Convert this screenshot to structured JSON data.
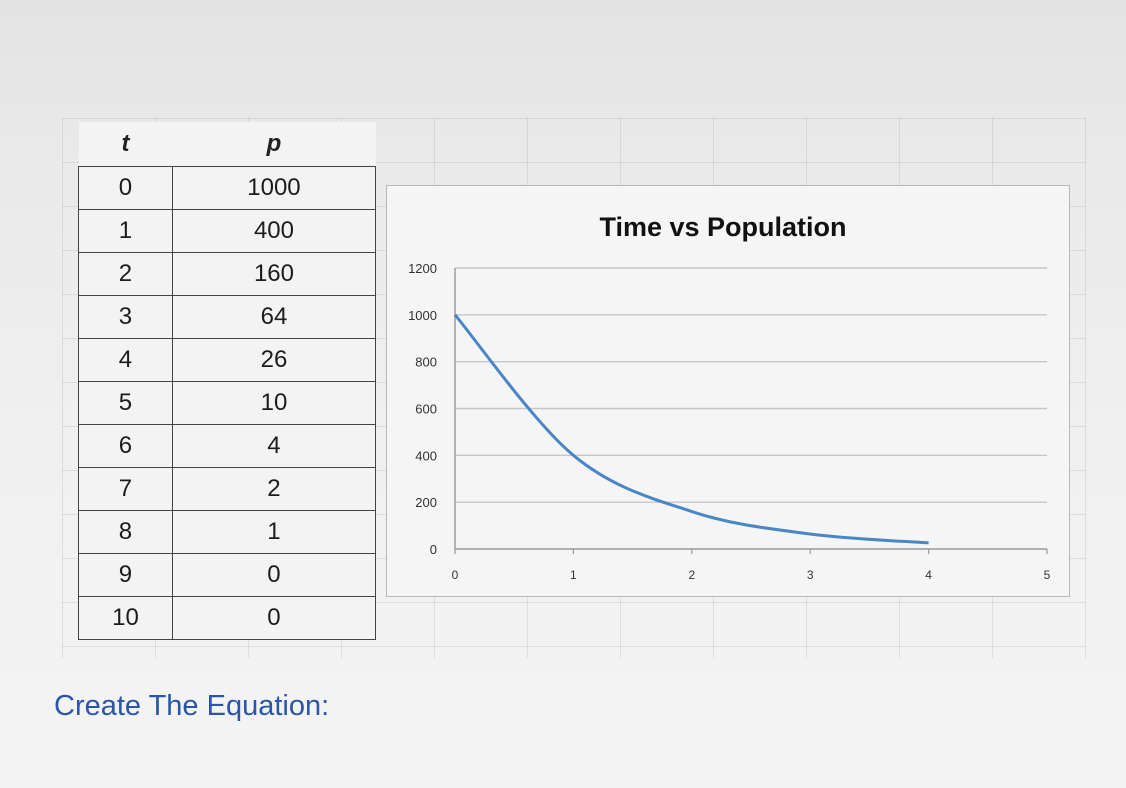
{
  "table": {
    "headers": [
      "t",
      "p"
    ],
    "rows": [
      [
        "0",
        "1000"
      ],
      [
        "1",
        "400"
      ],
      [
        "2",
        "160"
      ],
      [
        "3",
        "64"
      ],
      [
        "4",
        "26"
      ],
      [
        "5",
        "10"
      ],
      [
        "6",
        "4"
      ],
      [
        "7",
        "2"
      ],
      [
        "8",
        "1"
      ],
      [
        "9",
        "0"
      ],
      [
        "10",
        "0"
      ]
    ]
  },
  "chart_data": {
    "type": "line",
    "title": "Time vs Population",
    "xlabel": "",
    "ylabel": "",
    "x": [
      0,
      1,
      2,
      3,
      4
    ],
    "series": [
      {
        "values": [
          1000,
          400,
          160,
          64,
          26
        ],
        "color": "#4a86c5"
      }
    ],
    "xlim": [
      0,
      5
    ],
    "ylim": [
      0,
      1200
    ],
    "xticks": [
      "0",
      "1",
      "2",
      "3",
      "4",
      "5"
    ],
    "yticks": [
      "0",
      "200",
      "400",
      "600",
      "800",
      "1000",
      "1200"
    ],
    "grid": true,
    "legend": "none"
  },
  "caption": "Create The Equation:"
}
